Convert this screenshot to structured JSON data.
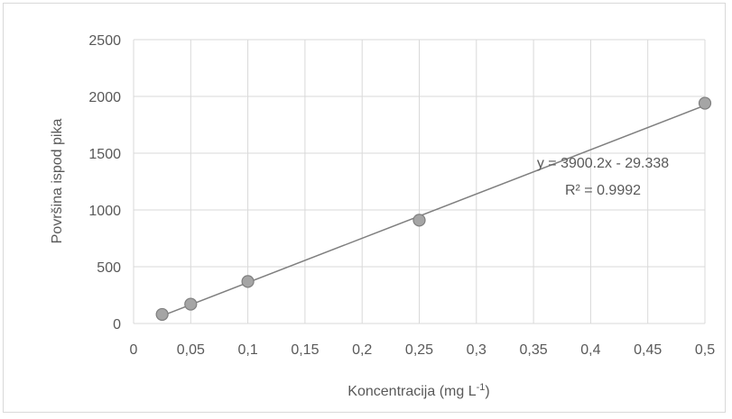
{
  "chart_data": {
    "type": "scatter",
    "x": [
      0.025,
      0.05,
      0.1,
      0.25,
      0.5
    ],
    "y": [
      80,
      170,
      370,
      910,
      1940
    ],
    "xlabel_main": "Koncentracija (mg L",
    "xlabel_sup": "-1",
    "xlabel_end": ")",
    "ylabel": "Površina ispod pika",
    "xlim": [
      0,
      0.5
    ],
    "ylim": [
      0,
      2500
    ],
    "x_ticks": [
      0,
      0.05,
      0.1,
      0.15,
      0.2,
      0.25,
      0.3,
      0.35,
      0.4,
      0.45,
      0.5
    ],
    "x_tick_labels": [
      "0",
      "0,05",
      "0,1",
      "0,15",
      "0,2",
      "0,25",
      "0,3",
      "0,35",
      "0,4",
      "0,45",
      "0,5"
    ],
    "y_ticks": [
      0,
      500,
      1000,
      1500,
      2000,
      2500
    ],
    "y_tick_labels": [
      "0",
      "500",
      "1000",
      "1500",
      "2000",
      "2500"
    ],
    "grid": true,
    "trendline": {
      "slope": 3900.2,
      "intercept": -29.338,
      "x_range": [
        0.025,
        0.5
      ],
      "equation": "y = 3900.2x - 29.338",
      "r_squared": "R² = 0.9992"
    },
    "colors": {
      "marker_fill": "#a5a5a5",
      "marker_stroke": "#7f7f7f",
      "trendline": "#7f7f7f",
      "grid": "#d9d9d9",
      "text": "#595959"
    }
  }
}
